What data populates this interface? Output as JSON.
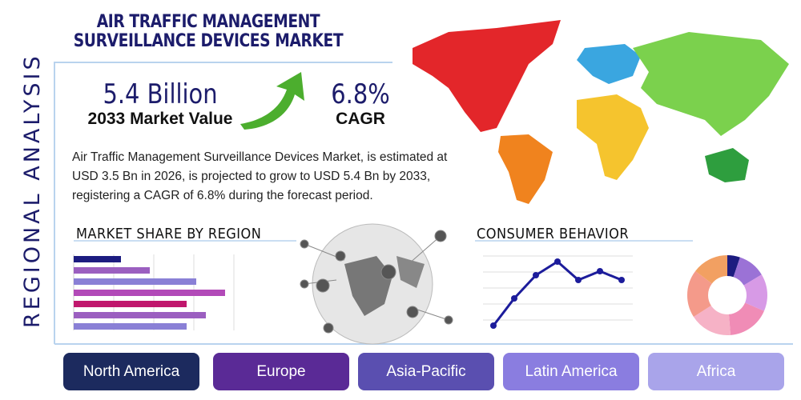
{
  "header": {
    "title": "AIR TRAFFIC MANAGEMENT SURVEILLANCE DEVICES MARKET",
    "side_label": "REGIONAL ANALYSIS"
  },
  "stats": [
    {
      "value": "5.4 Billion",
      "label": "2033 Market Value"
    },
    {
      "value": "6.8%",
      "label": "CAGR"
    }
  ],
  "description": "Air Traffic Management Surveillance Devices Market, is estimated at USD 3.5 Bn in 2026, is projected to grow to USD 5.4 Bn by 2033, registering a CAGR of 6.8% during the forecast period.",
  "sections": {
    "market_share": "MARKET SHARE BY REGION",
    "consumer_behavior": "CONSUMER BEHAVIOR"
  },
  "regions": [
    "North America",
    "Europe",
    "Asia-Pacific",
    "Latin America",
    "Africa"
  ]
}
